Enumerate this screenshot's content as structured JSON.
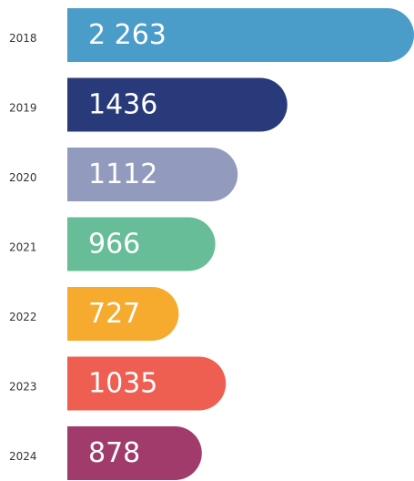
{
  "chart_data": {
    "type": "bar",
    "orientation": "horizontal",
    "categories": [
      "2018",
      "2019",
      "2020",
      "2021",
      "2022",
      "2023",
      "2024"
    ],
    "values": [
      2263,
      1436,
      1112,
      966,
      727,
      1035,
      878
    ],
    "value_labels": [
      "2 263",
      "1436",
      "1112",
      "966",
      "727",
      "1035",
      "878"
    ],
    "colors": [
      "#4a9cc9",
      "#283a7a",
      "#929bbd",
      "#67bd97",
      "#f6ab2f",
      "#ee5f52",
      "#a13b6c"
    ]
  }
}
